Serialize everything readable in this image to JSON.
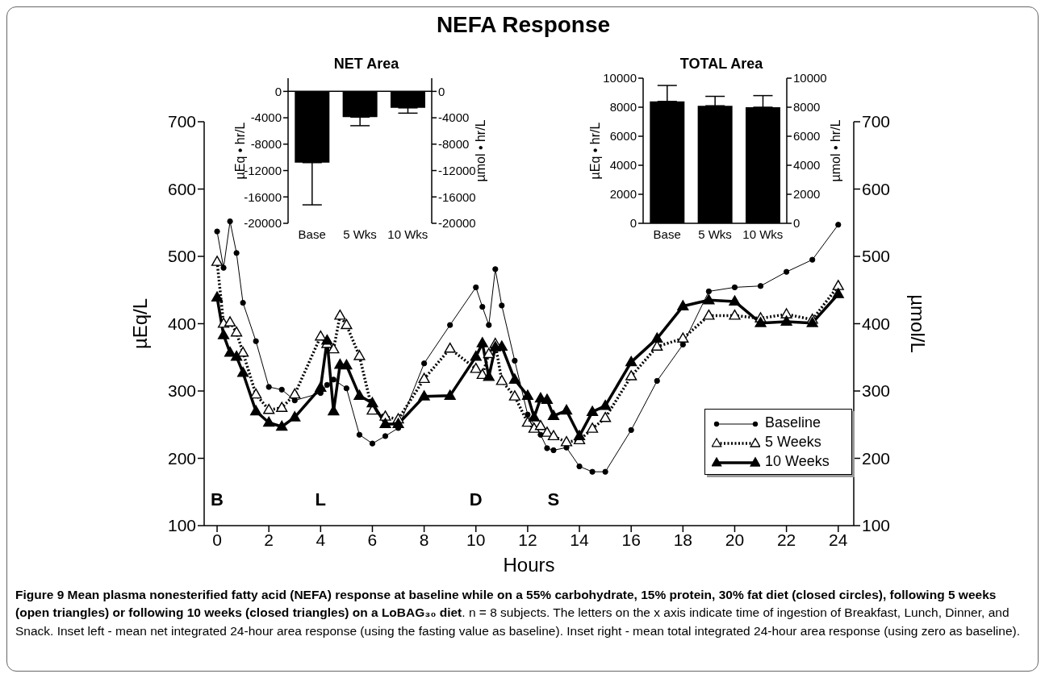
{
  "chart_data": [
    {
      "type": "line",
      "title": "NEFA Response",
      "xlabel": "Hours",
      "ylabel": "µEq/L",
      "y2label": "µmol/L",
      "xlim": [
        -0.5,
        24.6
      ],
      "xticks": [
        0,
        2,
        4,
        6,
        8,
        10,
        12,
        14,
        16,
        18,
        20,
        22,
        24
      ],
      "ylim": [
        100,
        700
      ],
      "yticks": [
        100,
        200,
        300,
        400,
        500,
        600,
        700
      ],
      "y2lim": [
        100,
        700
      ],
      "y2ticks": [
        100,
        200,
        300,
        400,
        500,
        600,
        700
      ],
      "legend": "bottom right",
      "grid": false,
      "series": [
        {
          "name": "Baseline",
          "color": "#000000",
          "marker": "circle",
          "line_style": "solid",
          "x": [
            0,
            0.25,
            0.5,
            0.75,
            1,
            1.5,
            2,
            2.5,
            3,
            4,
            4.25,
            4.5,
            5,
            5.5,
            6,
            6.5,
            7,
            8,
            9,
            10,
            10.25,
            10.5,
            10.75,
            11,
            11.5,
            12,
            12.5,
            12.75,
            13,
            13.5,
            14,
            14.5,
            15,
            16,
            17,
            18,
            19,
            20,
            21,
            22,
            23,
            24
          ],
          "values": [
            537,
            483,
            552,
            505,
            431,
            374,
            306,
            302,
            286,
            297,
            309,
            317,
            304,
            235,
            222,
            233,
            245,
            341,
            398,
            454,
            425,
            398,
            481,
            427,
            345,
            265,
            235,
            215,
            212,
            216,
            188,
            180,
            180,
            242,
            315,
            369,
            448,
            454,
            456,
            477,
            495,
            547
          ]
        },
        {
          "name": "5 Weeks",
          "color": "#000000",
          "marker": "triangle",
          "line_style": "dotted",
          "x": [
            0,
            0.25,
            0.5,
            0.75,
            1,
            1.5,
            2,
            2.5,
            3,
            4,
            4.25,
            4.5,
            4.75,
            5,
            5.5,
            6,
            6.5,
            7,
            8,
            9,
            10,
            10.25,
            10.5,
            10.75,
            11,
            11.5,
            12,
            12.25,
            12.5,
            12.75,
            13,
            13.5,
            14,
            14.5,
            15,
            16,
            17,
            18,
            19,
            20,
            21,
            22,
            23,
            24
          ],
          "values": [
            492,
            400,
            402,
            387,
            357,
            295,
            272,
            275,
            295,
            381,
            370,
            362,
            412,
            398,
            352,
            271,
            262,
            258,
            318,
            363,
            333,
            324,
            355,
            370,
            315,
            292,
            253,
            244,
            248,
            238,
            233,
            224,
            227,
            244,
            260,
            322,
            366,
            378,
            412,
            412,
            408,
            414,
            406,
            456
          ]
        },
        {
          "name": "10 Weeks",
          "color": "#000000",
          "marker": "triangle",
          "line_style": "solid",
          "x": [
            0,
            0.25,
            0.5,
            0.75,
            1,
            1.5,
            2,
            2.5,
            3,
            4,
            4.25,
            4.5,
            4.75,
            5,
            5.5,
            6,
            6.5,
            7,
            8,
            9,
            10,
            10.25,
            10.5,
            10.75,
            11,
            11.5,
            12,
            12.25,
            12.5,
            12.75,
            13,
            13.5,
            14,
            14.5,
            15,
            16,
            17,
            18,
            19,
            20,
            21,
            22,
            23,
            24
          ],
          "values": [
            439,
            383,
            357,
            351,
            327,
            270,
            253,
            247,
            261,
            305,
            375,
            270,
            339,
            338,
            293,
            282,
            251,
            251,
            292,
            293,
            351,
            371,
            321,
            365,
            366,
            317,
            293,
            261,
            289,
            287,
            263,
            271,
            233,
            269,
            278,
            343,
            378,
            426,
            435,
            433,
            401,
            403,
            401,
            444
          ]
        }
      ],
      "annotations": [
        "B",
        "L",
        "D",
        "S",
        "Figure 9 Mean plasma nonesterified fatty acid (NEFA) response at baseline while on a 55% carbohydrate, 15% protein, 30% fat diet (closed circles), following 5 weeks (open triangles) or following 10 weeks (closed triangles) on a LoBAG₃₀ diet",
        ". n = 8 subjects. The letters on the x axis indicate time of ingestion of Breakfast, Lunch, Dinner, and Snack. Inset left - mean net integrated 24-hour area response (using the fasting value as baseline). Inset right - mean total integrated 24-hour area response (using zero as baseline)."
      ]
    },
    {
      "type": "bar",
      "title": "NET Area",
      "ylabel": "µEq • hr/L",
      "y2label": "µmol • hr/L",
      "categories": [
        "Base",
        "5 Wks",
        "10 Wks"
      ],
      "values": [
        -10800,
        -3900,
        -2500
      ],
      "color": "#000000",
      "errors": [
        [
          -17200,
          -10800
        ],
        [
          -5200,
          -3900
        ],
        [
          -3300,
          -2500
        ]
      ],
      "ylim": [
        -20000,
        2000
      ],
      "yticks": [
        0,
        -4000,
        -8000,
        -12000,
        -16000,
        -20000
      ],
      "y2lim": [
        -20000,
        2000
      ],
      "y2ticks": [
        0,
        -4000,
        -8000,
        -12000,
        -16000,
        -20000
      ]
    },
    {
      "type": "bar",
      "title": "TOTAL Area",
      "ylabel": "µEq • hr/L",
      "y2label": "µmol • hr/L",
      "categories": [
        "Base",
        "5 Wks",
        "10 Wks"
      ],
      "values": [
        8400,
        8100,
        8000
      ],
      "color": "#000000",
      "errors": [
        [
          8400,
          9500
        ],
        [
          8100,
          8750
        ],
        [
          8000,
          8800
        ]
      ],
      "ylim": [
        0,
        10000
      ],
      "yticks": [
        0,
        2000,
        4000,
        6000,
        8000,
        10000
      ],
      "y2lim": [
        0,
        10000
      ],
      "y2ticks": [
        0,
        2000,
        4000,
        6000,
        8000,
        10000
      ]
    }
  ]
}
